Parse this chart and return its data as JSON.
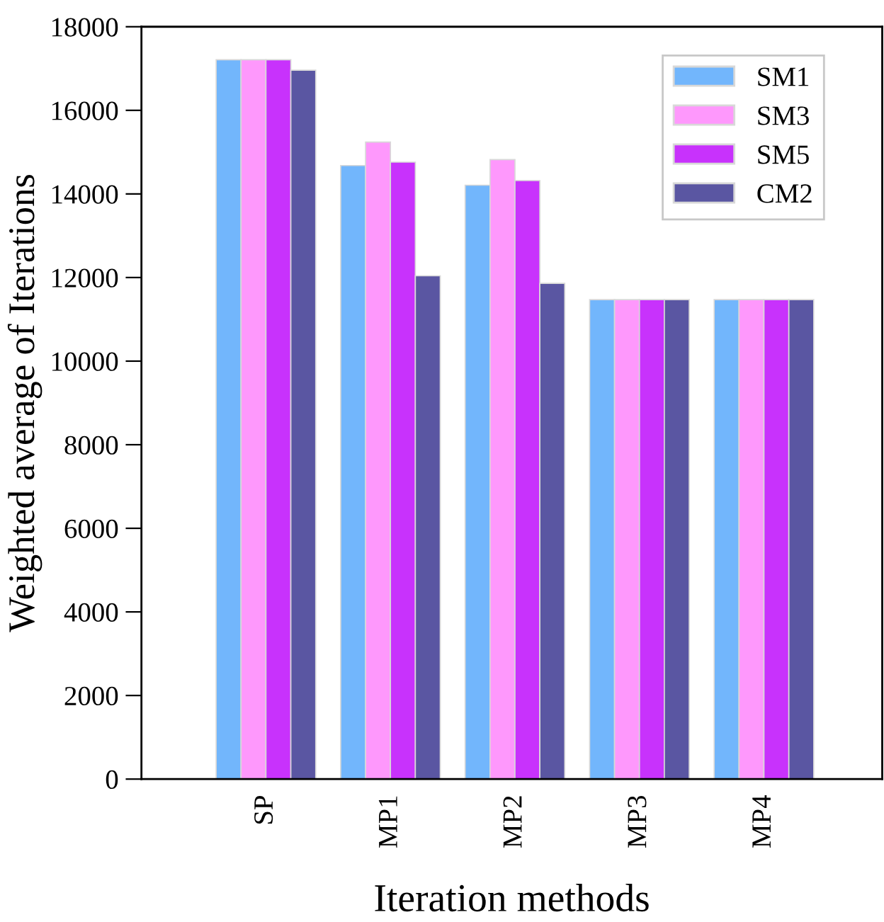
{
  "chart_data": {
    "type": "bar",
    "xlabel": "Iteration methods",
    "ylabel": "Weighted average of Iterations",
    "categories": [
      "SP",
      "MP1",
      "MP2",
      "MP3",
      "MP4"
    ],
    "series": [
      {
        "name": "SM1",
        "color": "#72b6fc",
        "values": [
          17210,
          14680,
          14210,
          11470,
          11470
        ]
      },
      {
        "name": "SM3",
        "color": "#fe98fc",
        "values": [
          17210,
          15240,
          14820,
          11470,
          11470
        ]
      },
      {
        "name": "SM5",
        "color": "#c832fc",
        "values": [
          17210,
          14760,
          14320,
          11470,
          11470
        ]
      },
      {
        "name": "CM2",
        "color": "#5a56a2",
        "values": [
          16960,
          12040,
          11860,
          11470,
          11470
        ]
      }
    ],
    "ylim": [
      0,
      18000
    ],
    "yticks": [
      0,
      2000,
      4000,
      6000,
      8000,
      10000,
      12000,
      14000,
      16000,
      18000
    ],
    "grid": false,
    "legend": "top right"
  }
}
